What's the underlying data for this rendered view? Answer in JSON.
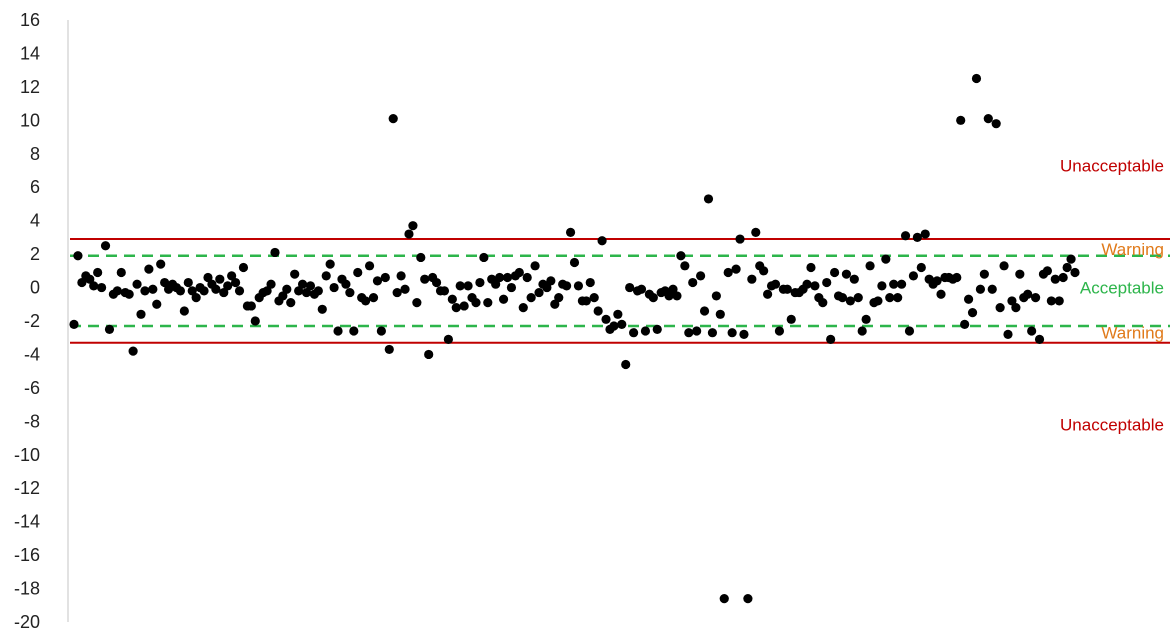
{
  "chart_data": {
    "type": "scatter",
    "title": "",
    "xlabel": "",
    "ylabel": "",
    "ylim": [
      -20,
      16
    ],
    "grid": false,
    "y_ticks": [
      16,
      14,
      12,
      10,
      8,
      6,
      4,
      2,
      0,
      -2,
      -4,
      -6,
      -8,
      -10,
      -12,
      -14,
      -16,
      -18,
      -20
    ],
    "y_tick_labels": [
      "16",
      "14",
      "12",
      "10",
      "8",
      "6",
      "4",
      "2",
      "0",
      "-2",
      "-4",
      "-6",
      "-8",
      "-10",
      "-12",
      "-14",
      "-16",
      "-18",
      "-20"
    ],
    "reference_lines": [
      {
        "value": 2.9,
        "style": "solid",
        "color": "#c00000"
      },
      {
        "value": -3.3,
        "style": "solid",
        "color": "#c00000"
      },
      {
        "value": 1.9,
        "style": "dashed",
        "color": "#2db54b"
      },
      {
        "value": -2.3,
        "style": "dashed",
        "color": "#2db54b"
      }
    ],
    "annotations": [
      {
        "text": "Unacceptable",
        "y": 7.3,
        "color": "#c00000"
      },
      {
        "text": "Warning",
        "y": 2.3,
        "color": "#e07a1a"
      },
      {
        "text": "Acceptable",
        "y": 0,
        "color": "#2db54b"
      },
      {
        "text": "Warning",
        "y": -2.7,
        "color": "#e07a1a"
      },
      {
        "text": "Unacceptable",
        "y": -8.2,
        "color": "#c00000"
      }
    ],
    "point_color": "#000000",
    "values": [
      -2.2,
      1.9,
      0.3,
      0.7,
      0.5,
      0.1,
      0.9,
      0.0,
      2.5,
      -2.5,
      -0.4,
      -0.2,
      0.9,
      -0.3,
      -0.4,
      -3.8,
      0.2,
      -1.6,
      -0.2,
      1.1,
      -0.1,
      -1.0,
      1.4,
      0.3,
      -0.1,
      0.2,
      0.0,
      -0.2,
      -1.4,
      0.3,
      -0.2,
      -0.6,
      0.0,
      -0.2,
      0.6,
      0.2,
      -0.1,
      0.5,
      -0.3,
      0.1,
      0.7,
      0.3,
      -0.2,
      1.2,
      -1.1,
      -1.1,
      -2.0,
      -0.6,
      -0.3,
      -0.2,
      0.2,
      2.1,
      -0.8,
      -0.5,
      -0.1,
      -0.9,
      0.8,
      -0.2,
      0.2,
      -0.3,
      0.1,
      -0.4,
      -0.2,
      -1.3,
      0.7,
      1.4,
      0.0,
      -2.6,
      0.5,
      0.2,
      -0.3,
      -2.6,
      0.9,
      -0.6,
      -0.8,
      1.3,
      -0.6,
      0.4,
      -2.6,
      0.6,
      -3.7,
      10.1,
      -0.3,
      0.7,
      -0.1,
      3.2,
      3.7,
      -0.9,
      1.8,
      0.5,
      -4.0,
      0.6,
      0.3,
      -0.2,
      -0.2,
      -3.1,
      -0.7,
      -1.2,
      0.1,
      -1.1,
      0.1,
      -0.6,
      -0.9,
      0.3,
      1.8,
      -0.9,
      0.5,
      0.2,
      0.6,
      -0.7,
      0.6,
      0.0,
      0.7,
      0.9,
      -1.2,
      0.6,
      -0.6,
      1.3,
      -0.3,
      0.2,
      0.0,
      0.4,
      -1.0,
      -0.6,
      0.2,
      0.1,
      3.3,
      1.5,
      0.1,
      -0.8,
      -0.8,
      0.3,
      -0.6,
      -1.4,
      2.8,
      -1.9,
      -2.5,
      -2.3,
      -1.6,
      -2.2,
      -4.6,
      0.0,
      -2.7,
      -0.2,
      -0.1,
      -2.6,
      -0.4,
      -0.6,
      -2.5,
      -0.3,
      -0.2,
      -0.5,
      -0.1,
      -0.5,
      1.9,
      1.3,
      -2.7,
      0.3,
      -2.6,
      0.7,
      -1.4,
      5.3,
      -2.7,
      -0.5,
      -1.6,
      -18.6,
      0.9,
      -2.7,
      1.1,
      2.9,
      -2.8,
      -18.6,
      0.5,
      3.3,
      1.3,
      1.0,
      -0.4,
      0.1,
      0.2,
      -2.6,
      -0.1,
      -0.1,
      -1.9,
      -0.3,
      -0.3,
      -0.1,
      0.2,
      1.2,
      0.1,
      -0.6,
      -0.9,
      0.3,
      -3.1,
      0.9,
      -0.5,
      -0.6,
      0.8,
      -0.8,
      0.5,
      -0.6,
      -2.6,
      -1.9,
      1.3,
      -0.9,
      -0.8,
      0.1,
      1.7,
      -0.6,
      0.2,
      -0.6,
      0.2,
      3.1,
      -2.6,
      0.7,
      3.0,
      1.2,
      3.2,
      0.5,
      0.2,
      0.4,
      -0.4,
      0.6,
      0.6,
      0.5,
      0.6,
      10.0,
      -2.2,
      -0.7,
      -1.5,
      12.5,
      -0.1,
      0.8,
      10.1,
      -0.1,
      9.8,
      -1.2,
      1.3,
      -2.8,
      -0.8,
      -1.2,
      0.8,
      -0.6,
      -0.4,
      -2.6,
      -0.6,
      -3.1,
      0.8,
      1.0,
      -0.8,
      0.5,
      -0.8,
      0.6,
      1.2,
      1.7,
      0.9
    ]
  }
}
